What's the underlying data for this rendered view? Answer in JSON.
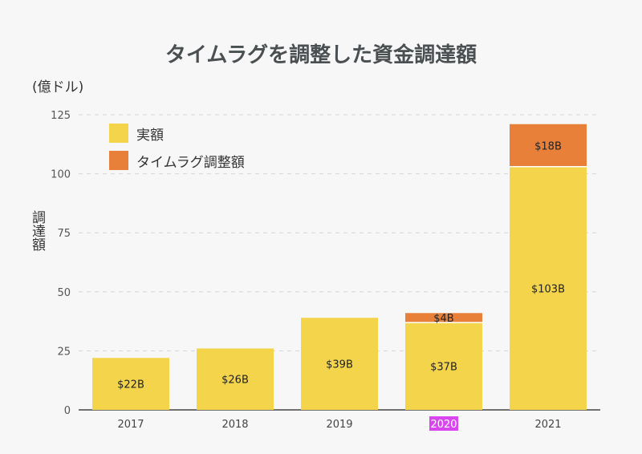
{
  "chart_data": {
    "type": "bar",
    "stacked": true,
    "title": "タイムラグを調整した資金調達額",
    "unit_label": "(億ドル)",
    "ylabel": "調達額",
    "xlabel": "",
    "categories": [
      "2017",
      "2018",
      "2019",
      "2020",
      "2021"
    ],
    "highlighted_category": "2020",
    "ylim": [
      0,
      125
    ],
    "yticks": [
      0,
      25,
      50,
      75,
      100,
      125
    ],
    "grid": true,
    "legend_position": "top-left",
    "series": [
      {
        "name": "実額",
        "color": "#f4d44a",
        "values": [
          22,
          26,
          39,
          37,
          103
        ],
        "labels": [
          "$22B",
          "$26B",
          "$39B",
          "$37B",
          "$103B"
        ]
      },
      {
        "name": "タイムラグ調整額",
        "color": "#e8803a",
        "values": [
          0,
          0,
          0,
          4,
          18
        ],
        "labels": [
          "",
          "",
          "",
          "$4B",
          "$18B"
        ]
      }
    ]
  }
}
